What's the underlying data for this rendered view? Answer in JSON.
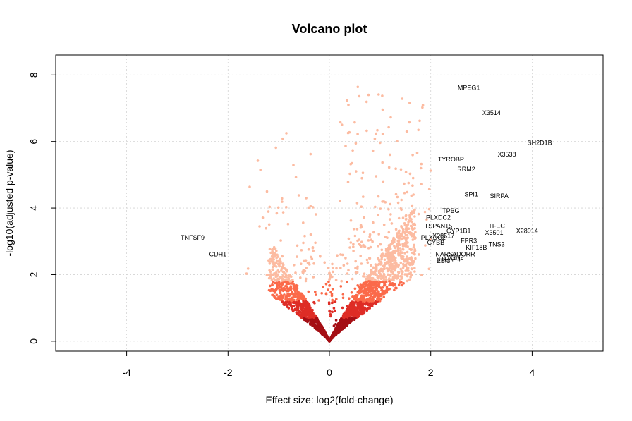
{
  "chart_data": {
    "type": "scatter",
    "title": "Volcano plot",
    "xlabel": "Effect size: log2(fold-change)",
    "ylabel": "-log10(adjusted p-value)",
    "xlim": [
      -5.4,
      5.4
    ],
    "ylim": [
      -0.3,
      8.6
    ],
    "xticks": [
      -4,
      -2,
      0,
      2,
      4
    ],
    "yticks": [
      0,
      2,
      4,
      6,
      8
    ],
    "grid": true,
    "colors": {
      "significance_dark": "#a50f15",
      "significance_mid": "#de2d26",
      "significance_light": "#fb6a4a",
      "significance_pale": "#fcbba1",
      "grid": "#d3d3d3"
    },
    "labeled_genes": [
      {
        "name": "MPEG1",
        "x": 2.75,
        "y": 7.6
      },
      {
        "name": "X3514",
        "x": 3.2,
        "y": 6.85
      },
      {
        "name": "SH2D1B",
        "x": 4.15,
        "y": 5.95
      },
      {
        "name": "X3538",
        "x": 3.5,
        "y": 5.6
      },
      {
        "name": "TYROBP",
        "x": 2.4,
        "y": 5.45
      },
      {
        "name": "RRM2",
        "x": 2.7,
        "y": 5.15
      },
      {
        "name": "SPI1",
        "x": 2.8,
        "y": 4.4
      },
      {
        "name": "SIRPA",
        "x": 3.35,
        "y": 4.35
      },
      {
        "name": "TPBG",
        "x": 2.4,
        "y": 3.9
      },
      {
        "name": "PLXDC2",
        "x": 2.15,
        "y": 3.7
      },
      {
        "name": "TSPAN15",
        "x": 2.15,
        "y": 3.45
      },
      {
        "name": "TFEC",
        "x": 3.3,
        "y": 3.45
      },
      {
        "name": "CYP1B1",
        "x": 2.55,
        "y": 3.3
      },
      {
        "name": "X3501",
        "x": 3.25,
        "y": 3.25
      },
      {
        "name": "X28914",
        "x": 3.9,
        "y": 3.3
      },
      {
        "name": "PLXDC2",
        "x": 2.05,
        "y": 3.1
      },
      {
        "name": "X28517",
        "x": 2.25,
        "y": 3.15
      },
      {
        "name": "CYBB",
        "x": 2.1,
        "y": 2.95
      },
      {
        "name": "FPR3",
        "x": 2.75,
        "y": 3.0
      },
      {
        "name": "TNS3",
        "x": 3.3,
        "y": 2.9
      },
      {
        "name": "KIF18B",
        "x": 2.9,
        "y": 2.8
      },
      {
        "name": "NARS2",
        "x": 2.3,
        "y": 2.6
      },
      {
        "name": "ADORR",
        "x": 2.65,
        "y": 2.6
      },
      {
        "name": "LYGH2",
        "x": 2.45,
        "y": 2.5
      },
      {
        "name": "STEAP4",
        "x": 2.35,
        "y": 2.45
      },
      {
        "name": "EBI3",
        "x": 2.25,
        "y": 2.4
      },
      {
        "name": "TNFSF9",
        "x": -2.7,
        "y": 3.1
      },
      {
        "name": "CDH1",
        "x": -2.2,
        "y": 2.6
      }
    ]
  }
}
